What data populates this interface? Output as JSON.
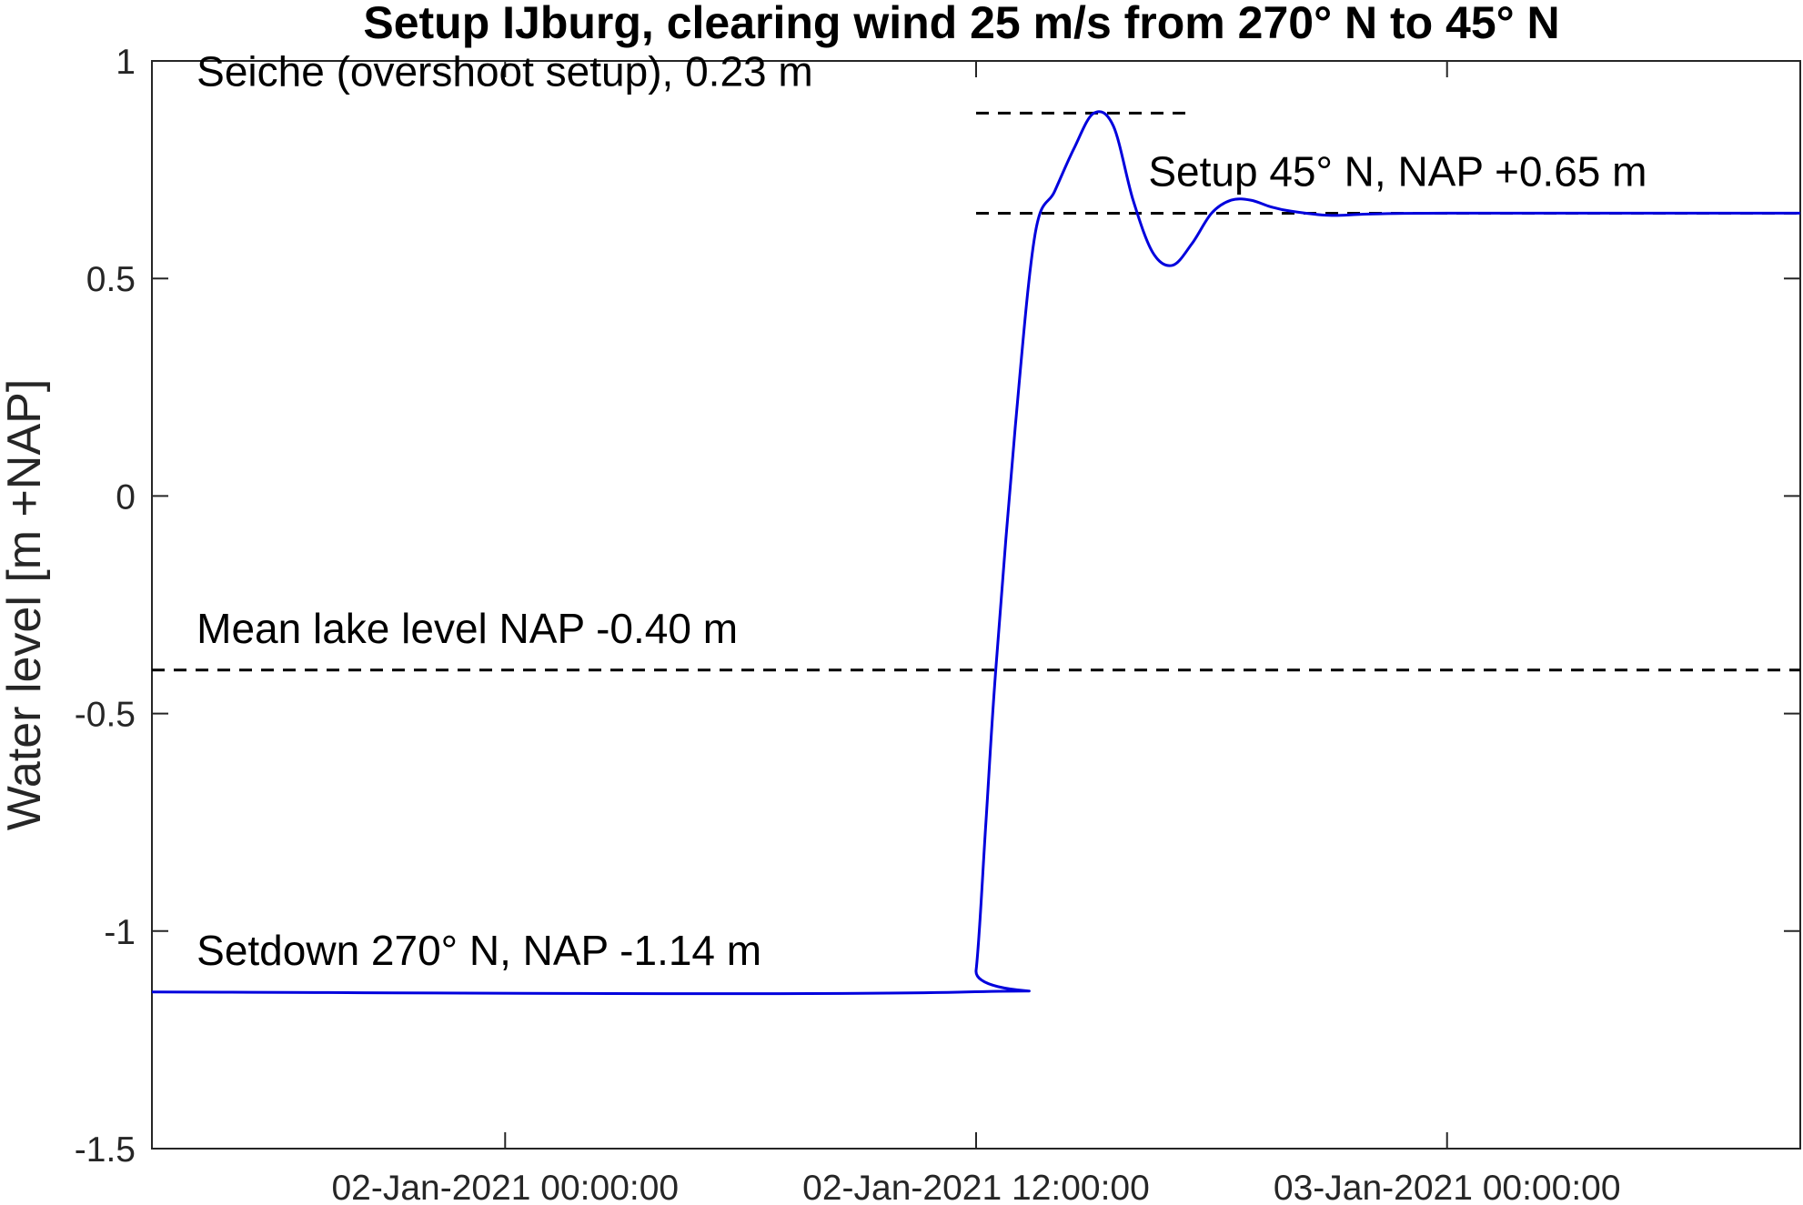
{
  "chart_data": {
    "type": "line",
    "title": "Setup IJburg, clearing wind 25 m/s from 270° N to 45° N",
    "xlabel": "",
    "ylabel": "Water level [m +NAP]",
    "xlim": [
      "2021-01-01 15:00:00",
      "2021-01-03 09:00:00"
    ],
    "ylim": [
      -1.5,
      1
    ],
    "yticks": [
      {
        "value": -1.5,
        "label": "-1.5"
      },
      {
        "value": -1,
        "label": "-1"
      },
      {
        "value": -0.5,
        "label": "-0.5"
      },
      {
        "value": 0,
        "label": "0"
      },
      {
        "value": 0.5,
        "label": "0.5"
      },
      {
        "value": 1,
        "label": "1"
      }
    ],
    "xticks": [
      {
        "value": "2021-01-02 00:00:00",
        "label": "02-Jan-2021 00:00:00"
      },
      {
        "value": "2021-01-02 12:00:00",
        "label": "02-Jan-2021 12:00:00"
      },
      {
        "value": "2021-01-03 00:00:00",
        "label": "03-Jan-2021 00:00:00"
      }
    ],
    "grid": false,
    "series": [
      {
        "color": "#0000dd",
        "x": [
          "2021-01-01 15:00:00",
          "2021-01-02 11:45:00",
          "2021-01-02 12:00:00",
          "2021-01-02 12:15:00",
          "2021-01-02 12:30:00",
          "2021-01-02 13:00:00",
          "2021-01-02 13:30:00",
          "2021-01-02 14:00:00",
          "2021-01-02 14:30:00",
          "2021-01-02 15:00:00",
          "2021-01-02 15:30:00",
          "2021-01-02 16:00:00",
          "2021-01-02 16:30:00",
          "2021-01-02 17:00:00",
          "2021-01-02 17:30:00",
          "2021-01-02 18:00:00",
          "2021-01-02 18:30:00",
          "2021-01-02 19:00:00",
          "2021-01-02 19:30:00",
          "2021-01-02 20:00:00",
          "2021-01-02 21:00:00",
          "2021-01-02 22:00:00",
          "2021-01-03 00:00:00",
          "2021-01-03 09:00:00"
        ],
        "y": [
          -1.14,
          -1.14,
          -1.09,
          -0.75,
          -0.4,
          0.16,
          0.6,
          0.7,
          0.8,
          0.88,
          0.85,
          0.68,
          0.56,
          0.53,
          0.58,
          0.65,
          0.68,
          0.68,
          0.665,
          0.655,
          0.645,
          0.648,
          0.65,
          0.65
        ]
      }
    ],
    "reference_lines": [
      {
        "y": 0.88,
        "x_start": "2021-01-02 12:00:00",
        "x_end": "2021-01-02 17:30:00",
        "style": "dashed",
        "color": "#000000"
      },
      {
        "y": 0.65,
        "x_start": "2021-01-02 12:00:00",
        "x_end": "2021-01-03 09:00:00",
        "style": "dashed",
        "color": "#000000"
      },
      {
        "y": -0.4,
        "x_start": "2021-01-01 15:00:00",
        "x_end": "2021-01-03 09:00:00",
        "style": "dashed",
        "color": "#000000"
      }
    ],
    "annotations": [
      {
        "text": "Seiche (overshoot setup), 0.23 m",
        "x": "2021-01-01 16:00:00",
        "y": 0.88
      },
      {
        "text": "Setup 45° N, NAP +0.65 m",
        "x": "2021-01-02 16:15:00",
        "y": 0.65
      },
      {
        "text": "Mean lake level NAP -0.40 m",
        "x": "2021-01-01 16:00:00",
        "y": -0.4
      },
      {
        "text": "Setdown 270° N, NAP -1.14 m",
        "x": "2021-01-01 16:00:00",
        "y": -1.14
      }
    ]
  }
}
